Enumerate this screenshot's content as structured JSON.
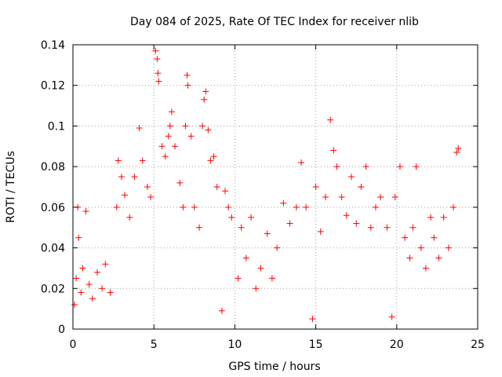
{
  "chart_data": {
    "type": "scatter",
    "title": "Day 084 of 2025, Rate Of TEC Index for receiver nlib",
    "xlabel": "GPS time / hours",
    "ylabel": "ROTI / TECUs",
    "xlim": [
      0,
      25
    ],
    "ylim": [
      0,
      0.14
    ],
    "xticks": [
      0,
      5,
      10,
      15,
      20,
      25
    ],
    "xtick_labels": [
      "0",
      "5",
      "10",
      "15",
      "20",
      "25"
    ],
    "yticks": [
      0,
      0.02,
      0.04,
      0.06,
      0.08,
      0.1,
      0.12,
      0.14
    ],
    "ytick_labels": [
      "0",
      "0.02",
      "0.04",
      "0.06",
      "0.08",
      "0.1",
      "0.12",
      "0.14"
    ],
    "grid": true,
    "marker": "plus",
    "color": "#ff0000",
    "series": [
      {
        "name": "ROTI",
        "points": [
          [
            0.1,
            0.012
          ],
          [
            0.2,
            0.025
          ],
          [
            0.3,
            0.06
          ],
          [
            0.35,
            0.045
          ],
          [
            0.5,
            0.018
          ],
          [
            0.6,
            0.03
          ],
          [
            0.8,
            0.058
          ],
          [
            1.0,
            0.022
          ],
          [
            1.2,
            0.015
          ],
          [
            1.5,
            0.028
          ],
          [
            1.8,
            0.02
          ],
          [
            2.0,
            0.032
          ],
          [
            2.3,
            0.018
          ],
          [
            2.7,
            0.06
          ],
          [
            2.8,
            0.083
          ],
          [
            3.0,
            0.075
          ],
          [
            3.2,
            0.066
          ],
          [
            3.5,
            0.055
          ],
          [
            3.8,
            0.075
          ],
          [
            4.1,
            0.099
          ],
          [
            4.3,
            0.083
          ],
          [
            4.6,
            0.07
          ],
          [
            4.8,
            0.065
          ],
          [
            5.1,
            0.137
          ],
          [
            5.2,
            0.133
          ],
          [
            5.25,
            0.126
          ],
          [
            5.3,
            0.122
          ],
          [
            5.5,
            0.09
          ],
          [
            5.7,
            0.085
          ],
          [
            5.9,
            0.095
          ],
          [
            6.0,
            0.1
          ],
          [
            6.1,
            0.107
          ],
          [
            6.3,
            0.09
          ],
          [
            6.6,
            0.072
          ],
          [
            6.8,
            0.06
          ],
          [
            6.95,
            0.1
          ],
          [
            7.05,
            0.125
          ],
          [
            7.1,
            0.12
          ],
          [
            7.3,
            0.095
          ],
          [
            7.5,
            0.06
          ],
          [
            7.8,
            0.05
          ],
          [
            8.0,
            0.1
          ],
          [
            8.1,
            0.113
          ],
          [
            8.2,
            0.117
          ],
          [
            8.35,
            0.098
          ],
          [
            8.5,
            0.083
          ],
          [
            8.7,
            0.085
          ],
          [
            8.9,
            0.07
          ],
          [
            9.2,
            0.009
          ],
          [
            9.4,
            0.068
          ],
          [
            9.6,
            0.06
          ],
          [
            9.8,
            0.055
          ],
          [
            10.2,
            0.025
          ],
          [
            10.4,
            0.05
          ],
          [
            10.7,
            0.035
          ],
          [
            11.0,
            0.055
          ],
          [
            11.3,
            0.02
          ],
          [
            11.6,
            0.03
          ],
          [
            12.0,
            0.047
          ],
          [
            12.3,
            0.025
          ],
          [
            12.6,
            0.04
          ],
          [
            13.0,
            0.062
          ],
          [
            13.4,
            0.052
          ],
          [
            13.8,
            0.06
          ],
          [
            14.1,
            0.082
          ],
          [
            14.4,
            0.06
          ],
          [
            14.8,
            0.005
          ],
          [
            15.0,
            0.07
          ],
          [
            15.3,
            0.048
          ],
          [
            15.6,
            0.065
          ],
          [
            15.9,
            0.103
          ],
          [
            16.1,
            0.088
          ],
          [
            16.3,
            0.08
          ],
          [
            16.6,
            0.065
          ],
          [
            16.9,
            0.056
          ],
          [
            17.2,
            0.075
          ],
          [
            17.5,
            0.052
          ],
          [
            17.8,
            0.07
          ],
          [
            18.1,
            0.08
          ],
          [
            18.4,
            0.05
          ],
          [
            18.7,
            0.06
          ],
          [
            19.0,
            0.065
          ],
          [
            19.4,
            0.05
          ],
          [
            19.7,
            0.006
          ],
          [
            19.9,
            0.065
          ],
          [
            20.2,
            0.08
          ],
          [
            20.5,
            0.045
          ],
          [
            20.8,
            0.035
          ],
          [
            21.0,
            0.05
          ],
          [
            21.2,
            0.08
          ],
          [
            21.5,
            0.04
          ],
          [
            21.8,
            0.03
          ],
          [
            22.1,
            0.055
          ],
          [
            22.3,
            0.045
          ],
          [
            22.6,
            0.035
          ],
          [
            22.9,
            0.055
          ],
          [
            23.2,
            0.04
          ],
          [
            23.5,
            0.06
          ],
          [
            23.7,
            0.087
          ],
          [
            23.8,
            0.089
          ]
        ]
      }
    ]
  }
}
